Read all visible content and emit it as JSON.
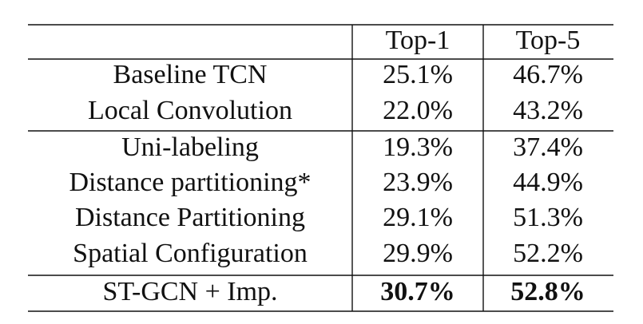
{
  "table": {
    "columns": [
      "Top-1",
      "Top-5"
    ],
    "rows": [
      [
        "Baseline TCN",
        "25.1%",
        "46.7%"
      ],
      [
        "Local Convolution",
        "22.0%",
        "43.2%"
      ],
      [
        "Uni-labeling",
        "19.3%",
        "37.4%"
      ],
      [
        "Distance partitioning*",
        "23.9%",
        "44.9%"
      ],
      [
        "Distance Partitioning",
        "29.1%",
        "51.3%"
      ],
      [
        "Spatial Configuration",
        "29.9%",
        "52.2%"
      ],
      [
        "ST-GCN + Imp.",
        "30.7%",
        "52.8%"
      ]
    ]
  }
}
